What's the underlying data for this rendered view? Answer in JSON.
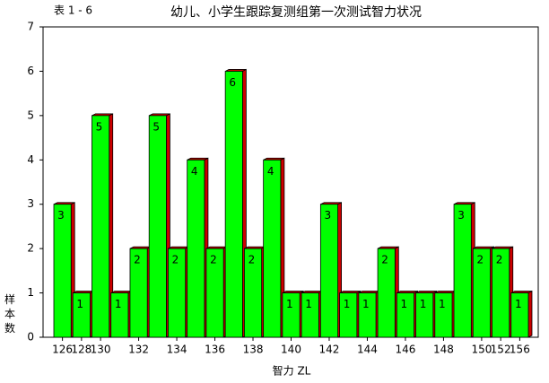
{
  "chart_data": {
    "type": "bar",
    "title": "幼儿、小学生跟踪复测组第一次测试智力状况",
    "table_label": "表 1 - 6",
    "x_label": "智力 ZL",
    "y_label": "样本数",
    "categories": [
      "126",
      "128",
      "130",
      null,
      "132",
      null,
      "134",
      null,
      "136",
      null,
      "138",
      null,
      "140",
      null,
      "142",
      null,
      "144",
      null,
      "146",
      null,
      "148",
      null,
      "150",
      "152",
      "156"
    ],
    "values": [
      3,
      1,
      5,
      1,
      2,
      5,
      2,
      4,
      2,
      6,
      2,
      4,
      1,
      1,
      3,
      1,
      1,
      2,
      1,
      1,
      1,
      3,
      2,
      2,
      1
    ],
    "color": "#00ff00",
    "side_color": "#cc0000",
    "ylim": [
      0,
      7
    ],
    "yticks": [
      0,
      1,
      2,
      3,
      4,
      5,
      6,
      7
    ]
  }
}
